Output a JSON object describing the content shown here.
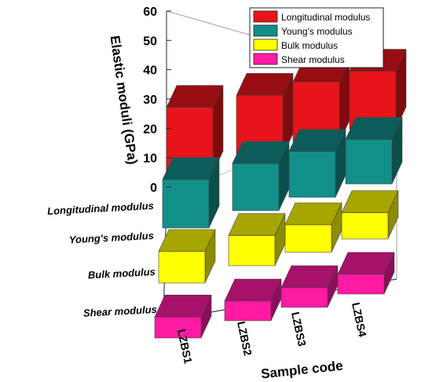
{
  "chart_data": {
    "type": "bar",
    "ylabel": "Elastic moduli (GPa)",
    "xlabel": "Sample code",
    "ylim": [
      0,
      60
    ],
    "y_ticks": [
      "0",
      "10",
      "20",
      "30",
      "40",
      "50",
      "60"
    ],
    "categories": [
      "LZBS1",
      "LZBS2",
      "LZBS3",
      "LZBS4"
    ],
    "depth_labels": [
      "Longitudinal modulus",
      "Young's modulus",
      "Bulk modulus",
      "Shear modulus"
    ],
    "legend_position": "top-right",
    "grid": false,
    "series": [
      {
        "name": "Longitudinal modulus",
        "color": "#e8141a",
        "values": [
          50,
          46,
          46,
          44
        ]
      },
      {
        "name": "Young's modulus",
        "color": "#138f8a",
        "values": [
          37,
          36,
          35,
          34
        ]
      },
      {
        "name": "Bulk modulus",
        "color": "#ffff00",
        "values": [
          24,
          23,
          21,
          20
        ]
      },
      {
        "name": "Shear modulus",
        "color": "#ff1aa3",
        "values": [
          16,
          15,
          15,
          15
        ]
      }
    ]
  }
}
